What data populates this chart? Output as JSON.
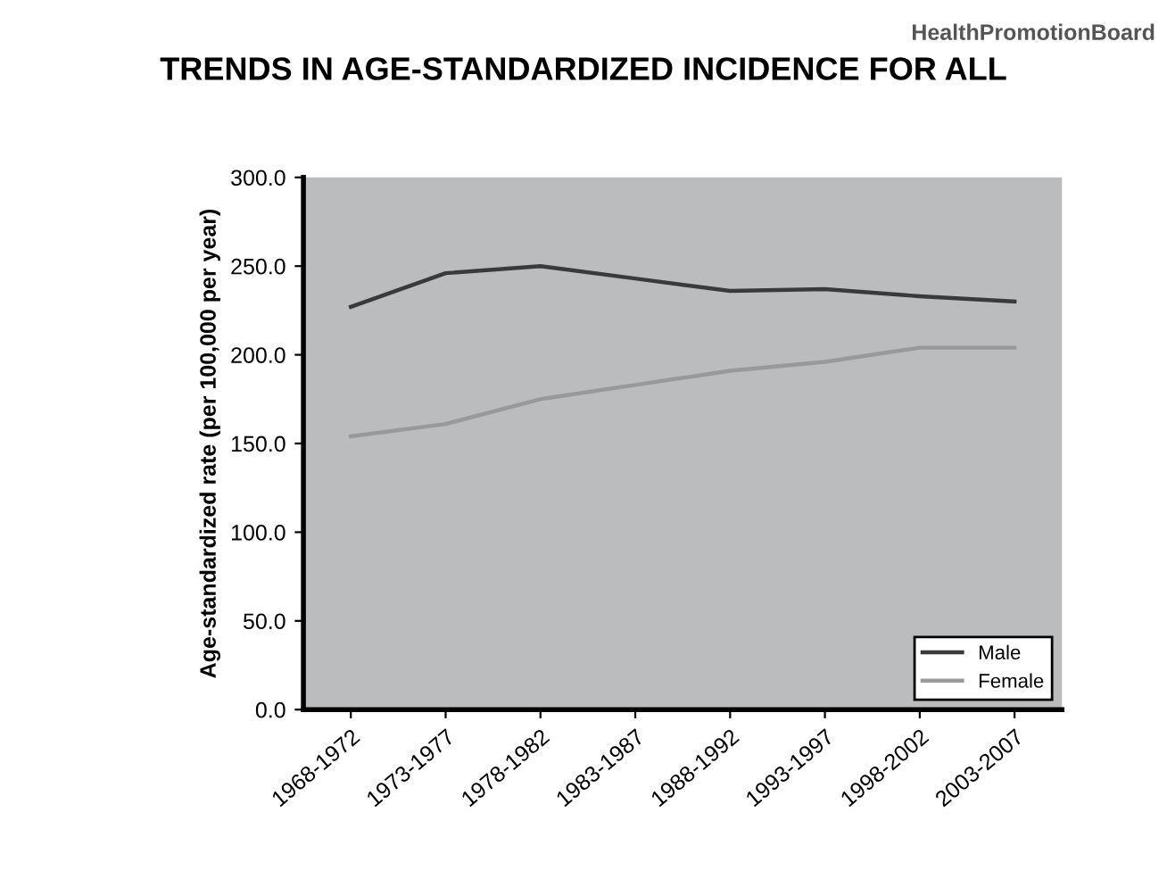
{
  "chart_data": {
    "type": "line",
    "title": "TRENDS IN AGE-STANDARDIZED INCIDENCE FOR ALL",
    "ylabel": "Age-standardized rate (per 100,000 per year)",
    "annotations": [
      "HealthPromotionBoard"
    ],
    "categories": [
      "1968-1972",
      "1973-1977",
      "1978-1982",
      "1983-1987",
      "1988-1992",
      "1993-1997",
      "1998-2002",
      "2003-2007"
    ],
    "series": [
      {
        "name": "Male",
        "color": "#3a3a3a",
        "values": [
          227,
          246,
          250,
          243,
          236,
          237,
          233,
          230
        ]
      },
      {
        "name": "Female",
        "color": "#999999",
        "values": [
          154,
          161,
          175,
          183,
          191,
          196,
          204,
          204
        ]
      }
    ],
    "ylim": [
      0,
      300
    ],
    "yticks": [
      {
        "value": 0,
        "label": "0.0"
      },
      {
        "value": 50,
        "label": "50.0"
      },
      {
        "value": 100,
        "label": "100.0"
      },
      {
        "value": 150,
        "label": "150.0"
      },
      {
        "value": 200,
        "label": "200.0"
      },
      {
        "value": 250,
        "label": "250.0"
      },
      {
        "value": 300,
        "label": "300.0"
      }
    ],
    "grid": false,
    "legend": "bottom right",
    "marker": "none",
    "line_style": "solid"
  }
}
